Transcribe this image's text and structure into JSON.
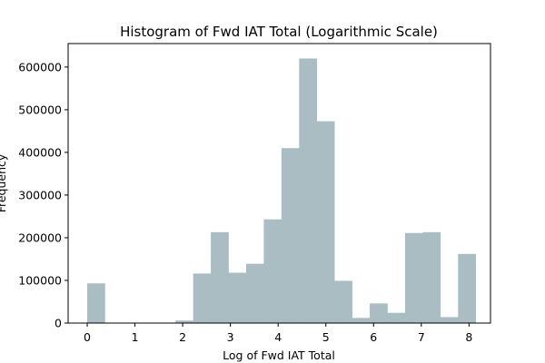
{
  "chart_data": {
    "type": "bar",
    "title": "Histogram of Fwd IAT Total (Logarithmic Scale)",
    "xlabel": "Log of Fwd IAT Total",
    "ylabel": "Frequency",
    "xlim": [
      -0.4,
      8.45
    ],
    "ylim": [
      0,
      655000
    ],
    "xticks": [
      0,
      1,
      2,
      3,
      4,
      5,
      6,
      7,
      8
    ],
    "yticks": [
      0,
      100000,
      200000,
      300000,
      400000,
      500000,
      600000
    ],
    "grid": false,
    "bar_color": "#a9bdc2",
    "bins": [
      {
        "x0": 0.0,
        "x1": 0.37,
        "value": 93000
      },
      {
        "x0": 0.37,
        "x1": 0.74,
        "value": 0
      },
      {
        "x0": 0.74,
        "x1": 1.11,
        "value": 0
      },
      {
        "x0": 1.11,
        "x1": 1.48,
        "value": 0
      },
      {
        "x0": 1.48,
        "x1": 1.85,
        "value": 0
      },
      {
        "x0": 1.85,
        "x1": 2.22,
        "value": 6000
      },
      {
        "x0": 2.22,
        "x1": 2.59,
        "value": 116000
      },
      {
        "x0": 2.59,
        "x1": 2.96,
        "value": 213000
      },
      {
        "x0": 2.96,
        "x1": 3.33,
        "value": 118000
      },
      {
        "x0": 3.33,
        "x1": 3.7,
        "value": 139000
      },
      {
        "x0": 3.7,
        "x1": 4.07,
        "value": 243000
      },
      {
        "x0": 4.07,
        "x1": 4.44,
        "value": 410000
      },
      {
        "x0": 4.44,
        "x1": 4.81,
        "value": 620000
      },
      {
        "x0": 4.81,
        "x1": 5.18,
        "value": 473000
      },
      {
        "x0": 5.18,
        "x1": 5.55,
        "value": 99000
      },
      {
        "x0": 5.55,
        "x1": 5.92,
        "value": 12000
      },
      {
        "x0": 5.92,
        "x1": 6.29,
        "value": 46000
      },
      {
        "x0": 6.29,
        "x1": 6.66,
        "value": 24000
      },
      {
        "x0": 6.66,
        "x1": 7.03,
        "value": 211000
      },
      {
        "x0": 7.03,
        "x1": 7.4,
        "value": 213000
      },
      {
        "x0": 7.4,
        "x1": 7.77,
        "value": 14000
      },
      {
        "x0": 7.77,
        "x1": 8.14,
        "value": 162000
      }
    ]
  }
}
